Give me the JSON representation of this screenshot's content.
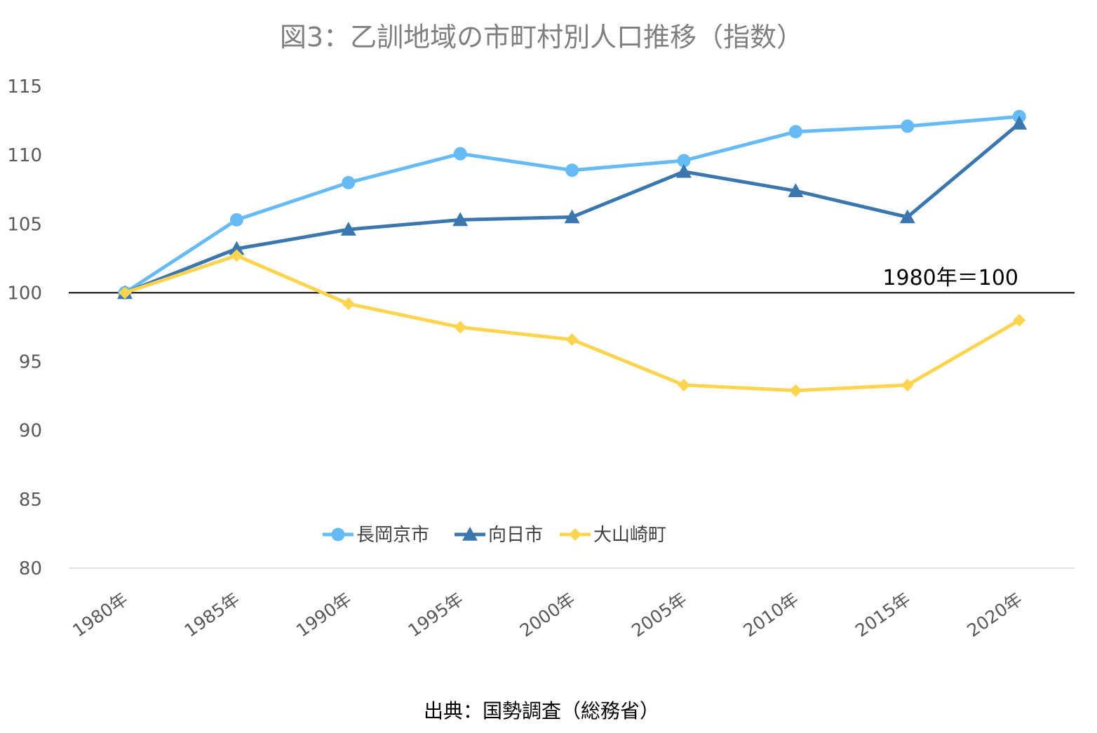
{
  "chart_data": {
    "type": "line",
    "title": "図3：乙訓地域の市町村別人口推移（指数）",
    "categories": [
      "1980年",
      "1985年",
      "1990年",
      "1995年",
      "2000年",
      "2005年",
      "2010年",
      "2015年",
      "2020年"
    ],
    "ylim": [
      80,
      115
    ],
    "yticks": [
      80,
      85,
      90,
      95,
      100,
      105,
      110,
      115
    ],
    "grid": false,
    "legend_position": "bottom",
    "series": [
      {
        "name": "長岡京市",
        "marker": "circle",
        "color": "#66bbf7",
        "values": [
          100,
          105.3,
          108.0,
          110.1,
          108.9,
          109.6,
          111.7,
          112.1,
          112.8
        ]
      },
      {
        "name": "向日市",
        "marker": "triangle",
        "color": "#3b76ae",
        "values": [
          100,
          103.2,
          104.6,
          105.3,
          105.5,
          108.8,
          107.4,
          105.5,
          112.3
        ]
      },
      {
        "name": "大山崎町",
        "marker": "diamond",
        "color": "#fdd44f",
        "values": [
          100,
          102.7,
          99.2,
          97.5,
          96.6,
          93.3,
          92.9,
          93.3,
          98.0
        ]
      }
    ],
    "reference_line": {
      "value": 100,
      "label": "1980年＝100"
    },
    "source": "出典：国勢調査（総務省）"
  }
}
